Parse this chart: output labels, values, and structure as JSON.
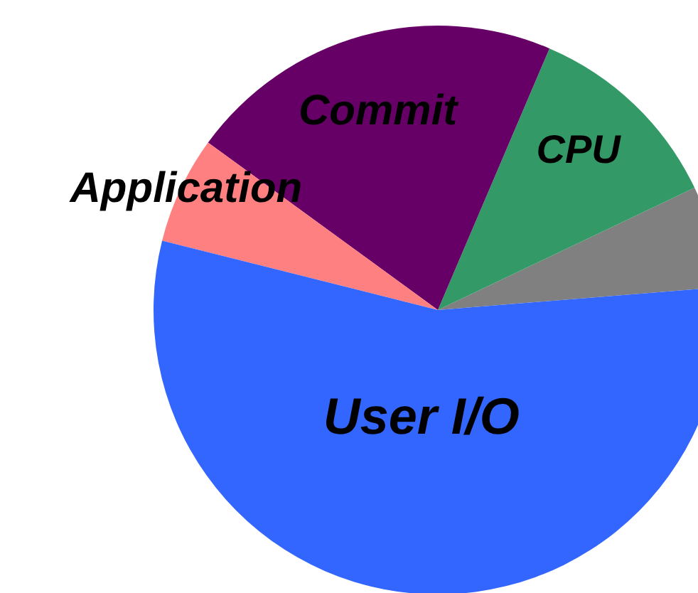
{
  "chart_data": {
    "type": "pie",
    "categories": [
      null,
      "CPU",
      "Commit",
      "Application",
      "User I/O"
    ],
    "values": [
      5.8,
      11.5,
      21.4,
      6.1,
      55.2
    ],
    "colors": [
      "#808080",
      "#339966",
      "#660066",
      "#ff8080",
      "#3366ff"
    ],
    "legend": false
  }
}
